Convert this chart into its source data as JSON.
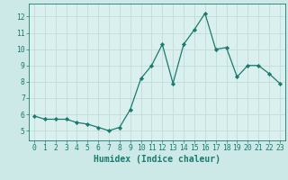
{
  "x": [
    0,
    1,
    2,
    3,
    4,
    5,
    6,
    7,
    8,
    9,
    10,
    11,
    12,
    13,
    14,
    15,
    16,
    17,
    18,
    19,
    20,
    21,
    22,
    23
  ],
  "y": [
    5.9,
    5.7,
    5.7,
    5.7,
    5.5,
    5.4,
    5.2,
    5.0,
    5.2,
    6.3,
    8.2,
    9.0,
    10.3,
    7.9,
    10.3,
    11.2,
    12.2,
    10.0,
    10.1,
    8.3,
    9.0,
    9.0,
    8.5,
    7.9
  ],
  "xlabel": "Humidex (Indice chaleur)",
  "ylim": [
    4.4,
    12.8
  ],
  "xlim": [
    -0.5,
    23.5
  ],
  "yticks": [
    5,
    6,
    7,
    8,
    9,
    10,
    11,
    12
  ],
  "xticks": [
    0,
    1,
    2,
    3,
    4,
    5,
    6,
    7,
    8,
    9,
    10,
    11,
    12,
    13,
    14,
    15,
    16,
    17,
    18,
    19,
    20,
    21,
    22,
    23
  ],
  "line_color": "#1a7a6e",
  "marker": "D",
  "marker_size": 2.2,
  "bg_color": "#cce9e7",
  "grid_color": "#c0dbd9",
  "axes_bg": "#daf0ee",
  "tick_label_fontsize": 5.8,
  "xlabel_fontsize": 7.0,
  "xlabel_fontfamily": "monospace"
}
